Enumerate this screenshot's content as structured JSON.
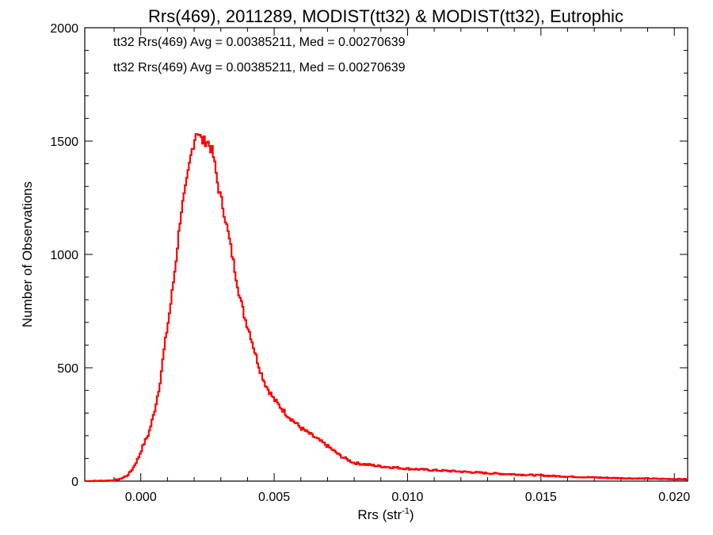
{
  "chart_data": {
    "type": "line",
    "style": "histogram-step",
    "title": "Rrs(469), 2011289, MODIST(tt32) & MODIST(tt32), Eutrophic",
    "xlabel_main": "Rrs (str",
    "xlabel_sup": "-1",
    "xlabel_close": ")",
    "ylabel": "Number of Observations",
    "xlim": [
      -0.0021,
      0.0205
    ],
    "ylim": [
      0,
      2000
    ],
    "xticks": [
      0.0,
      0.005,
      0.01,
      0.015,
      0.02
    ],
    "xtick_labels": [
      "0.000",
      "0.005",
      "0.010",
      "0.015",
      "0.020"
    ],
    "yticks": [
      0,
      500,
      1000,
      1500,
      2000
    ],
    "ytick_labels": [
      "0",
      "500",
      "1000",
      "1500",
      "2000"
    ],
    "grid": false,
    "annotations": [
      {
        "text": "tt32 Rrs(469) Avg = 0.00385211, Med = 0.00270639",
        "color": "#000000"
      },
      {
        "text": "tt32 Rrs(469) Avg = 0.00385211, Med = 0.00270639",
        "color": "#ff0000"
      }
    ],
    "series": [
      {
        "color": "#ff0000",
        "control_points": [
          [
            -0.0021,
            0
          ],
          [
            -0.0012,
            2
          ],
          [
            -0.0008,
            8
          ],
          [
            -0.0005,
            25
          ],
          [
            -0.0003,
            55
          ],
          [
            -0.0001,
            100
          ],
          [
            0.0001,
            160
          ],
          [
            0.0003,
            210
          ],
          [
            0.0005,
            300
          ],
          [
            0.0007,
            420
          ],
          [
            0.0009,
            600
          ],
          [
            0.0011,
            760
          ],
          [
            0.0013,
            950
          ],
          [
            0.0015,
            1180
          ],
          [
            0.0017,
            1300
          ],
          [
            0.0019,
            1450
          ],
          [
            0.0021,
            1550
          ],
          [
            0.0023,
            1500
          ],
          [
            0.0025,
            1500
          ],
          [
            0.0027,
            1450
          ],
          [
            0.0029,
            1300
          ],
          [
            0.0031,
            1200
          ],
          [
            0.0033,
            1080
          ],
          [
            0.0035,
            950
          ],
          [
            0.0037,
            820
          ],
          [
            0.0039,
            720
          ],
          [
            0.0041,
            650
          ],
          [
            0.0043,
            560
          ],
          [
            0.0045,
            480
          ],
          [
            0.0047,
            420
          ],
          [
            0.005,
            360
          ],
          [
            0.0055,
            290
          ],
          [
            0.006,
            235
          ],
          [
            0.0065,
            195
          ],
          [
            0.007,
            155
          ],
          [
            0.0075,
            110
          ],
          [
            0.008,
            80
          ],
          [
            0.009,
            65
          ],
          [
            0.01,
            55
          ],
          [
            0.011,
            48
          ],
          [
            0.012,
            42
          ],
          [
            0.013,
            35
          ],
          [
            0.014,
            30
          ],
          [
            0.015,
            25
          ],
          [
            0.016,
            20
          ],
          [
            0.017,
            16
          ],
          [
            0.018,
            13
          ],
          [
            0.019,
            11
          ],
          [
            0.0205,
            8
          ]
        ]
      }
    ]
  }
}
